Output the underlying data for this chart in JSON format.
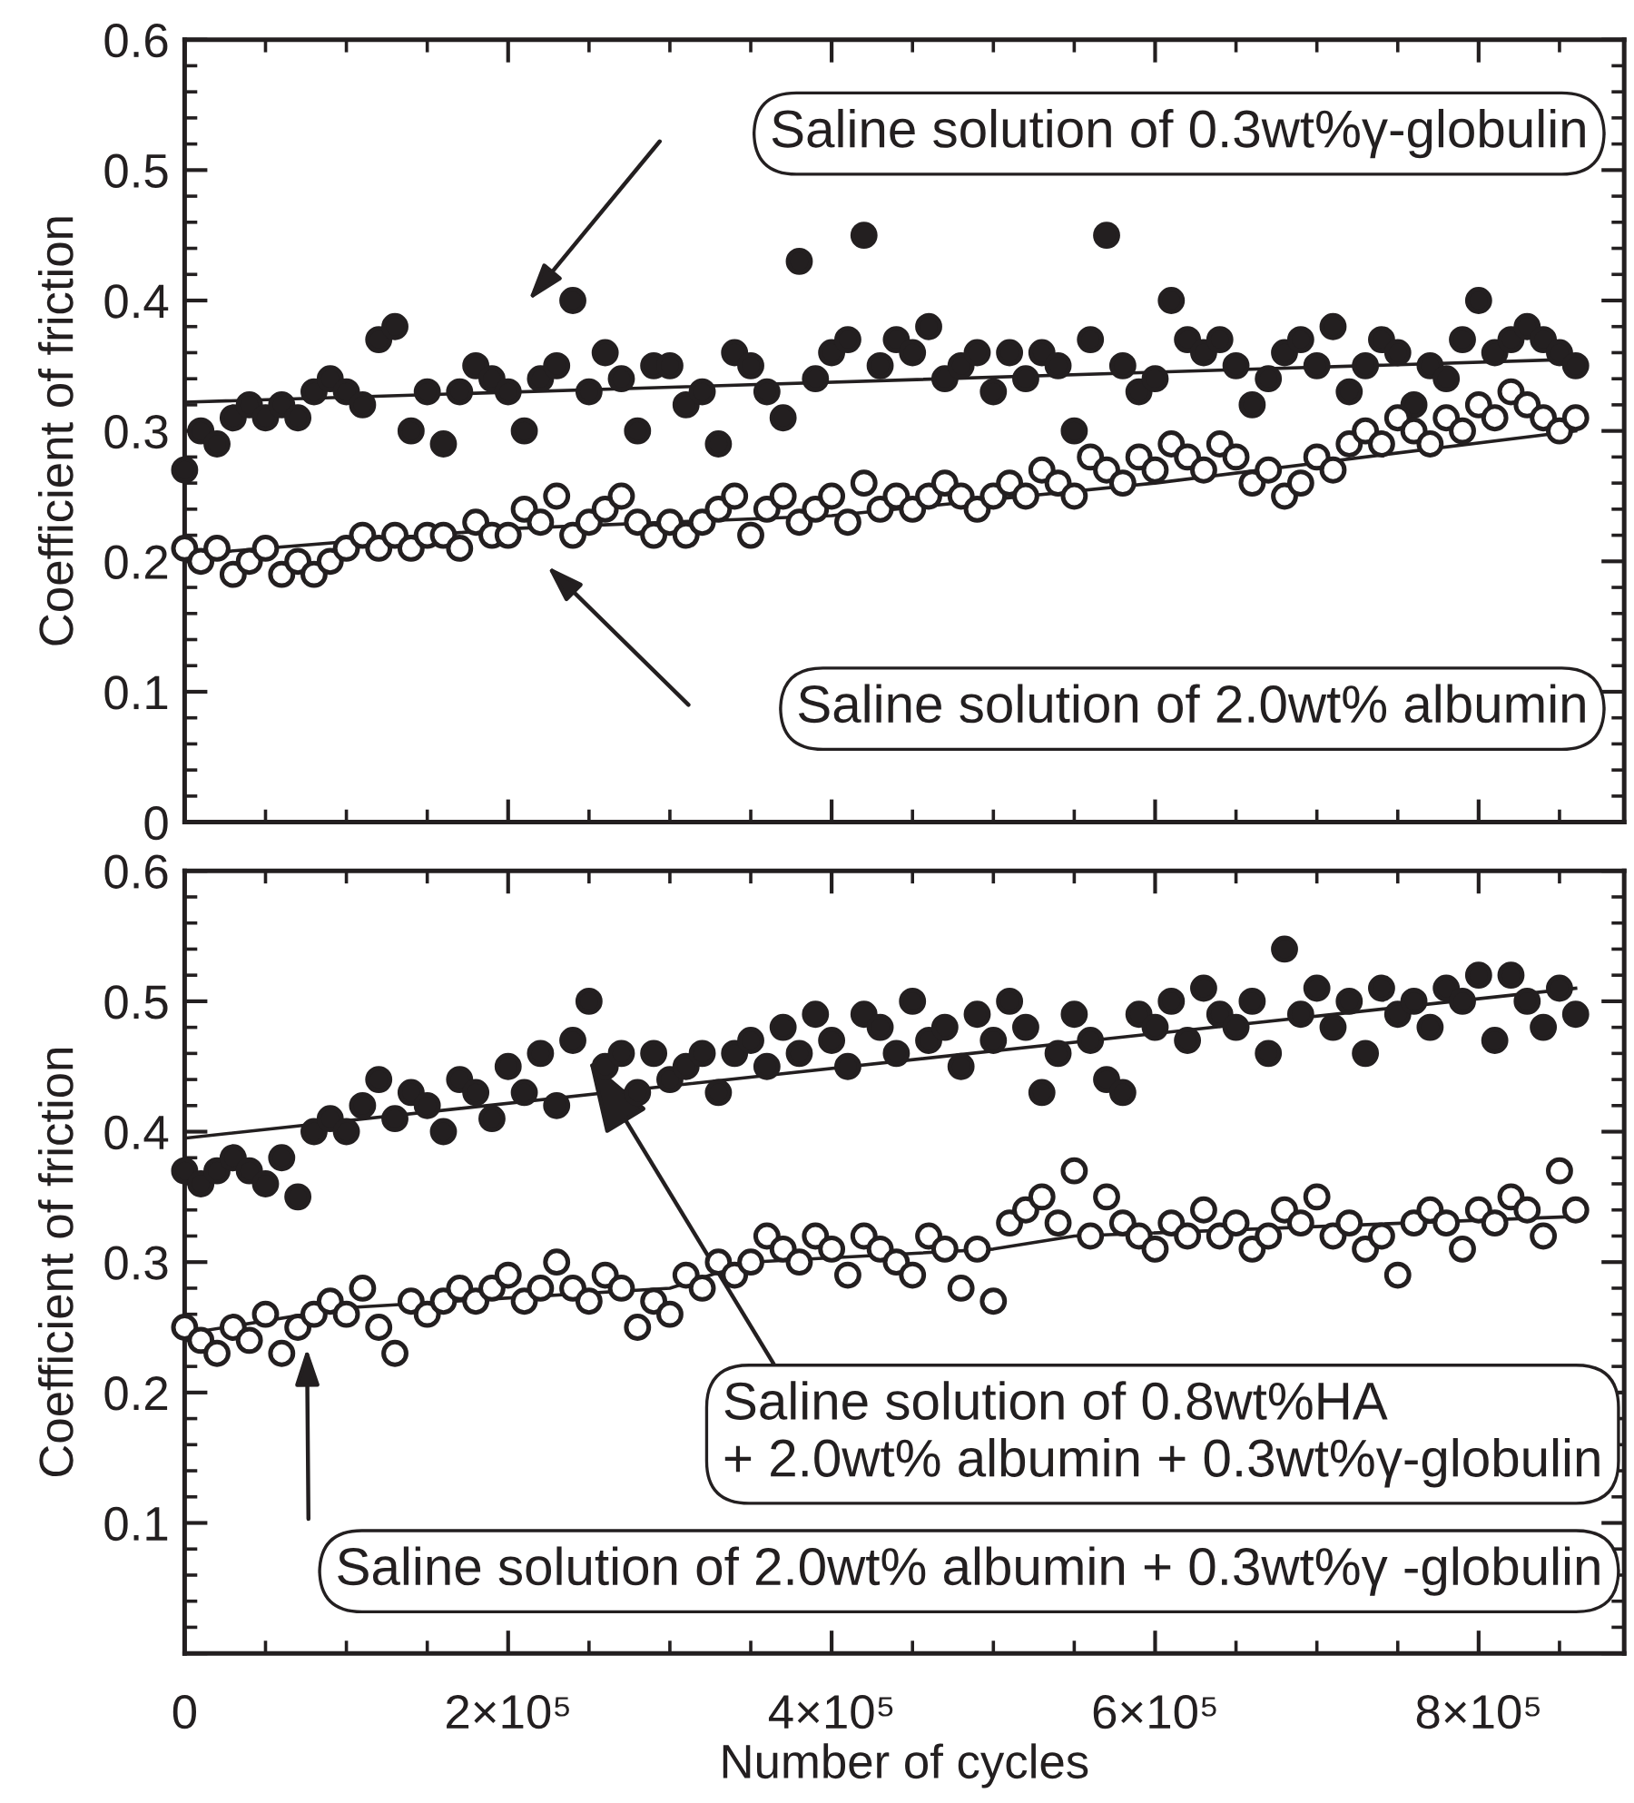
{
  "chart_data": [
    {
      "type": "scatter",
      "ylabel": "Coefficient of friction",
      "xlim": [
        0,
        890000
      ],
      "ylim": [
        0,
        0.6
      ],
      "xticks": [
        {
          "value": 0,
          "label": null
        },
        {
          "value": 200000,
          "label": null
        },
        {
          "value": 400000,
          "label": null
        },
        {
          "value": 600000,
          "label": null
        },
        {
          "value": 800000,
          "label": null
        }
      ],
      "yticks": [
        0,
        0.1,
        0.2,
        0.3,
        0.4,
        0.5,
        0.6
      ],
      "tick_labels": "y",
      "annotations": [
        "Saline solution of 0.3wt%γ-globulin",
        "Saline solution of 2.0wt% albumin"
      ],
      "series": [
        {
          "marker": "circle",
          "color": "#231f20",
          "x": [
            0,
            10000,
            20000,
            30000,
            40000,
            50000,
            60000,
            70000,
            80000,
            90000,
            100000,
            110000,
            120000,
            130000,
            140000,
            150000,
            160000,
            170000,
            180000,
            190000,
            200000,
            210000,
            220000,
            230000,
            240000,
            250000,
            260000,
            270000,
            280000,
            290000,
            300000,
            310000,
            320000,
            330000,
            340000,
            350000,
            360000,
            370000,
            380000,
            390000,
            400000,
            410000,
            420000,
            430000,
            440000,
            450000,
            460000,
            470000,
            480000,
            490000,
            500000,
            510000,
            520000,
            530000,
            540000,
            550000,
            560000,
            570000,
            580000,
            590000,
            600000,
            610000,
            620000,
            630000,
            640000,
            650000,
            660000,
            670000,
            680000,
            690000,
            700000,
            710000,
            720000,
            730000,
            740000,
            750000,
            760000,
            770000,
            780000,
            790000,
            800000,
            810000,
            820000,
            830000,
            840000,
            850000,
            860000
          ],
          "values": [
            0.27,
            0.3,
            0.29,
            0.31,
            0.32,
            0.31,
            0.32,
            0.31,
            0.33,
            0.34,
            0.33,
            0.32,
            0.37,
            0.38,
            0.3,
            0.33,
            0.29,
            0.33,
            0.35,
            0.34,
            0.33,
            0.3,
            0.34,
            0.35,
            0.4,
            0.33,
            0.36,
            0.34,
            0.3,
            0.35,
            0.35,
            0.32,
            0.33,
            0.29,
            0.36,
            0.35,
            0.33,
            0.31,
            0.43,
            0.34,
            0.36,
            0.37,
            0.45,
            0.35,
            0.37,
            0.36,
            0.38,
            0.34,
            0.35,
            0.36,
            0.33,
            0.36,
            0.34,
            0.36,
            0.35,
            0.3,
            0.37,
            0.45,
            0.35,
            0.33,
            0.34,
            0.4,
            0.37,
            0.36,
            0.37,
            0.35,
            0.32,
            0.34,
            0.36,
            0.37,
            0.35,
            0.38,
            0.33,
            0.35,
            0.37,
            0.36,
            0.32,
            0.35,
            0.34,
            0.37,
            0.4,
            0.36,
            0.37,
            0.38,
            0.37,
            0.36,
            0.35
          ]
        },
        {
          "marker": "circle",
          "color": "#ffffff",
          "x": [
            0,
            10000,
            20000,
            30000,
            40000,
            50000,
            60000,
            70000,
            80000,
            90000,
            100000,
            110000,
            120000,
            130000,
            140000,
            150000,
            160000,
            170000,
            180000,
            190000,
            200000,
            210000,
            220000,
            230000,
            240000,
            250000,
            260000,
            270000,
            280000,
            290000,
            300000,
            310000,
            320000,
            330000,
            340000,
            350000,
            360000,
            370000,
            380000,
            390000,
            400000,
            410000,
            420000,
            430000,
            440000,
            450000,
            460000,
            470000,
            480000,
            490000,
            500000,
            510000,
            520000,
            530000,
            540000,
            550000,
            560000,
            570000,
            580000,
            590000,
            600000,
            610000,
            620000,
            630000,
            640000,
            650000,
            660000,
            670000,
            680000,
            690000,
            700000,
            710000,
            720000,
            730000,
            740000,
            750000,
            760000,
            770000,
            780000,
            790000,
            800000,
            810000,
            820000,
            830000,
            840000,
            850000,
            860000
          ],
          "values": [
            0.21,
            0.2,
            0.21,
            0.19,
            0.2,
            0.21,
            0.19,
            0.2,
            0.19,
            0.2,
            0.21,
            0.22,
            0.21,
            0.22,
            0.21,
            0.22,
            0.22,
            0.21,
            0.23,
            0.22,
            0.22,
            0.24,
            0.23,
            0.25,
            0.22,
            0.23,
            0.24,
            0.25,
            0.23,
            0.22,
            0.23,
            0.22,
            0.23,
            0.24,
            0.25,
            0.22,
            0.24,
            0.25,
            0.23,
            0.24,
            0.25,
            0.23,
            0.26,
            0.24,
            0.25,
            0.24,
            0.25,
            0.26,
            0.25,
            0.24,
            0.25,
            0.26,
            0.25,
            0.27,
            0.26,
            0.25,
            0.28,
            0.27,
            0.26,
            0.28,
            0.27,
            0.29,
            0.28,
            0.27,
            0.29,
            0.28,
            0.26,
            0.27,
            0.25,
            0.26,
            0.28,
            0.27,
            0.29,
            0.3,
            0.29,
            0.31,
            0.3,
            0.29,
            0.31,
            0.3,
            0.32,
            0.31,
            0.33,
            0.32,
            0.31,
            0.3,
            0.31
          ]
        },
        {
          "type": "line",
          "marker": "none",
          "line_style": "solid",
          "color": "#231f20",
          "x": [
            0,
            860000
          ],
          "values": [
            0.322,
            0.355
          ]
        },
        {
          "type": "line",
          "marker": "none",
          "line_style": "solid",
          "color": "#231f20",
          "x": [
            0,
            200000,
            400000,
            600000,
            860000
          ],
          "values": [
            0.205,
            0.225,
            0.235,
            0.26,
            0.3
          ]
        }
      ]
    },
    {
      "type": "scatter",
      "xlabel": "Number of cycles",
      "ylabel": "Coefficient of friction",
      "xlim": [
        0,
        890000
      ],
      "ylim": [
        0,
        0.6
      ],
      "xticks": [
        {
          "value": 0,
          "label": "0"
        },
        {
          "value": 200000,
          "label": "2×10⁵"
        },
        {
          "value": 400000,
          "label": "4×10⁵"
        },
        {
          "value": 600000,
          "label": "6×10⁵"
        },
        {
          "value": 800000,
          "label": "8×10⁵"
        }
      ],
      "yticks": [
        {
          "value": 0,
          "label": null
        },
        0.1,
        0.2,
        0.3,
        0.4,
        0.5,
        0.6
      ],
      "annotations": [
        {
          "text": "Saline solution of 0.8wt%HA\n+ 2.0wt% albumin + 0.3wt%γ-globulin",
          "x": 250000,
          "y": 0.455
        },
        "Saline solution of 2.0wt% albumin + 0.3wt%γ -globulin"
      ],
      "series": [
        {
          "marker": "circle",
          "color": "#231f20",
          "x": [
            0,
            10000,
            20000,
            30000,
            40000,
            50000,
            60000,
            70000,
            80000,
            90000,
            100000,
            110000,
            120000,
            130000,
            140000,
            150000,
            160000,
            170000,
            180000,
            190000,
            200000,
            210000,
            220000,
            230000,
            240000,
            250000,
            260000,
            270000,
            280000,
            290000,
            300000,
            310000,
            320000,
            330000,
            340000,
            350000,
            360000,
            370000,
            380000,
            390000,
            400000,
            410000,
            420000,
            430000,
            440000,
            450000,
            460000,
            470000,
            480000,
            490000,
            500000,
            510000,
            520000,
            530000,
            540000,
            550000,
            560000,
            570000,
            580000,
            590000,
            600000,
            610000,
            620000,
            630000,
            640000,
            650000,
            660000,
            670000,
            680000,
            690000,
            700000,
            710000,
            720000,
            730000,
            740000,
            750000,
            760000,
            770000,
            780000,
            790000,
            800000,
            810000,
            820000,
            830000,
            840000,
            850000,
            860000
          ],
          "values": [
            0.37,
            0.36,
            0.37,
            0.38,
            0.37,
            0.36,
            0.38,
            0.35,
            0.4,
            0.41,
            0.4,
            0.42,
            0.44,
            0.41,
            0.43,
            0.42,
            0.4,
            0.44,
            0.43,
            0.41,
            0.45,
            0.43,
            0.46,
            0.42,
            0.47,
            0.5,
            0.45,
            0.46,
            0.43,
            0.46,
            0.44,
            0.45,
            0.46,
            0.43,
            0.46,
            0.47,
            0.45,
            0.48,
            0.46,
            0.49,
            0.47,
            0.45,
            0.49,
            0.48,
            0.46,
            0.5,
            0.47,
            0.48,
            0.45,
            0.49,
            0.47,
            0.5,
            0.48,
            0.43,
            0.46,
            0.49,
            0.47,
            0.44,
            0.43,
            0.49,
            0.48,
            0.5,
            0.47,
            0.51,
            0.49,
            0.48,
            0.5,
            0.46,
            0.54,
            0.49,
            0.51,
            0.48,
            0.5,
            0.46,
            0.51,
            0.49,
            0.5,
            0.48,
            0.51,
            0.5,
            0.52,
            0.47,
            0.52,
            0.5,
            0.48,
            0.51,
            0.49
          ]
        },
        {
          "marker": "circle",
          "color": "#ffffff",
          "x": [
            0,
            10000,
            20000,
            30000,
            40000,
            50000,
            60000,
            70000,
            80000,
            90000,
            100000,
            110000,
            120000,
            130000,
            140000,
            150000,
            160000,
            170000,
            180000,
            190000,
            200000,
            210000,
            220000,
            230000,
            240000,
            250000,
            260000,
            270000,
            280000,
            290000,
            300000,
            310000,
            320000,
            330000,
            340000,
            350000,
            360000,
            370000,
            380000,
            390000,
            400000,
            410000,
            420000,
            430000,
            440000,
            450000,
            460000,
            470000,
            480000,
            490000,
            500000,
            510000,
            520000,
            530000,
            540000,
            550000,
            560000,
            570000,
            580000,
            590000,
            600000,
            610000,
            620000,
            630000,
            640000,
            650000,
            660000,
            670000,
            680000,
            690000,
            700000,
            710000,
            720000,
            730000,
            740000,
            750000,
            760000,
            770000,
            780000,
            790000,
            800000,
            810000,
            820000,
            830000,
            840000,
            850000,
            860000
          ],
          "values": [
            0.25,
            0.24,
            0.23,
            0.25,
            0.24,
            0.26,
            0.23,
            0.25,
            0.26,
            0.27,
            0.26,
            0.28,
            0.25,
            0.23,
            0.27,
            0.26,
            0.27,
            0.28,
            0.27,
            0.28,
            0.29,
            0.27,
            0.28,
            0.3,
            0.28,
            0.27,
            0.29,
            0.28,
            0.25,
            0.27,
            0.26,
            0.29,
            0.28,
            0.3,
            0.29,
            0.3,
            0.32,
            0.31,
            0.3,
            0.32,
            0.31,
            0.29,
            0.32,
            0.31,
            0.3,
            0.29,
            0.32,
            0.31,
            0.28,
            0.31,
            0.27,
            0.33,
            0.34,
            0.35,
            0.33,
            0.37,
            0.32,
            0.35,
            0.33,
            0.32,
            0.31,
            0.33,
            0.32,
            0.34,
            0.32,
            0.33,
            0.31,
            0.32,
            0.34,
            0.33,
            0.35,
            0.32,
            0.33,
            0.31,
            0.32,
            0.29,
            0.33,
            0.34,
            0.33,
            0.31,
            0.34,
            0.33,
            0.35,
            0.34,
            0.32,
            0.37,
            0.34
          ]
        },
        {
          "type": "line",
          "marker": "none",
          "line_style": "solid",
          "color": "#231f20",
          "x": [
            0,
            860000
          ],
          "values": [
            0.395,
            0.51
          ]
        },
        {
          "type": "line",
          "marker": "none",
          "line_style": "solid",
          "color": "#231f20",
          "x": [
            0,
            100000,
            300000,
            350000,
            500000,
            550000,
            860000
          ],
          "values": [
            0.245,
            0.265,
            0.28,
            0.3,
            0.31,
            0.32,
            0.335
          ]
        }
      ]
    }
  ]
}
